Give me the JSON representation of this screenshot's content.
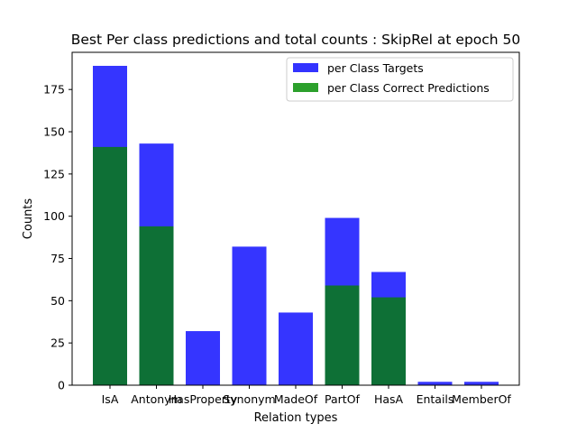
{
  "chart_data": {
    "type": "bar",
    "title": "Best Per class predictions and total counts : SkipRel at epoch 50",
    "xlabel": "Relation types",
    "ylabel": "Counts",
    "ylim": [
      0,
      197
    ],
    "yticks": [
      0,
      25,
      50,
      75,
      100,
      125,
      150,
      175
    ],
    "grid": false,
    "legend_position": "top-right",
    "categories": [
      "IsA",
      "Antonym",
      "HasProperty",
      "Synonym",
      "MadeOf",
      "PartOf",
      "HasA",
      "Entails",
      "MemberOf"
    ],
    "series": [
      {
        "name": "per Class Targets",
        "color": "#3333ff",
        "values": [
          189,
          143,
          32,
          82,
          43,
          99,
          67,
          2,
          2
        ]
      },
      {
        "name": "per Class Correct Predictions",
        "color": "#2ca02c",
        "values": [
          141,
          94,
          0,
          0,
          0,
          59,
          52,
          0,
          0
        ]
      }
    ]
  }
}
